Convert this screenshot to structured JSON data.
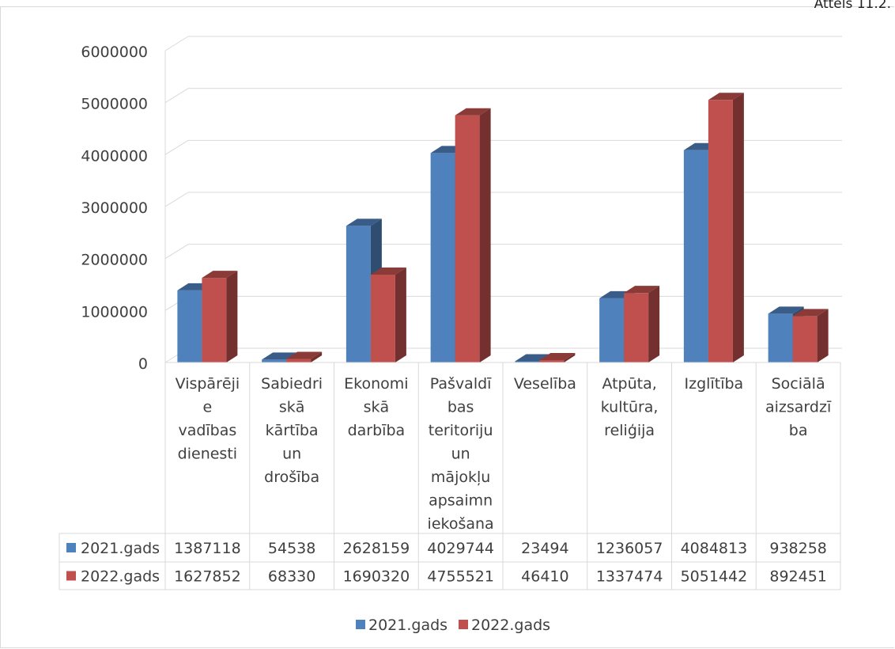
{
  "corner_label": "Attēls 11.2.",
  "chart_data": {
    "type": "bar",
    "title": "",
    "xlabel": "",
    "ylabel": "",
    "ylim": [
      0,
      6000000
    ],
    "yticks": [
      "0",
      "1000000",
      "2000000",
      "3000000",
      "4000000",
      "5000000",
      "6000000"
    ],
    "grid": true,
    "legend_position": "bottom",
    "categories": [
      [
        "Vispārēji",
        "e",
        "vadības",
        "dienesti"
      ],
      [
        "Sabiedri",
        "skā",
        "kārtība",
        "un",
        "drošība"
      ],
      [
        "Ekonomi",
        "skā",
        "darbība"
      ],
      [
        "Pašvaldī",
        "bas",
        "teritoriju",
        "un",
        "mājokļu",
        "apsaimn",
        "iekošana"
      ],
      [
        "Veselība"
      ],
      [
        "Atpūta,",
        "kultūra,",
        "reliģija"
      ],
      [
        "Izglītība"
      ],
      [
        "Sociālā",
        "aizsardzī",
        "ba"
      ]
    ],
    "series": [
      {
        "name": "2021.gads",
        "color": "#4f81bd",
        "values": [
          1387118,
          54538,
          2628159,
          4029744,
          23494,
          1236057,
          4084813,
          938258
        ]
      },
      {
        "name": "2022.gads",
        "color": "#c0504d",
        "values": [
          1627852,
          68330,
          1690320,
          4755521,
          46410,
          1337474,
          5051442,
          892451
        ]
      }
    ],
    "table_values": [
      [
        "1387118",
        "54538",
        "2628159",
        "4029744",
        "23494",
        "1236057",
        "4084813",
        "938258"
      ],
      [
        "1627852",
        "68330",
        "1690320",
        "4755521",
        "46410",
        "1337474",
        "5051442",
        "892451"
      ]
    ]
  }
}
